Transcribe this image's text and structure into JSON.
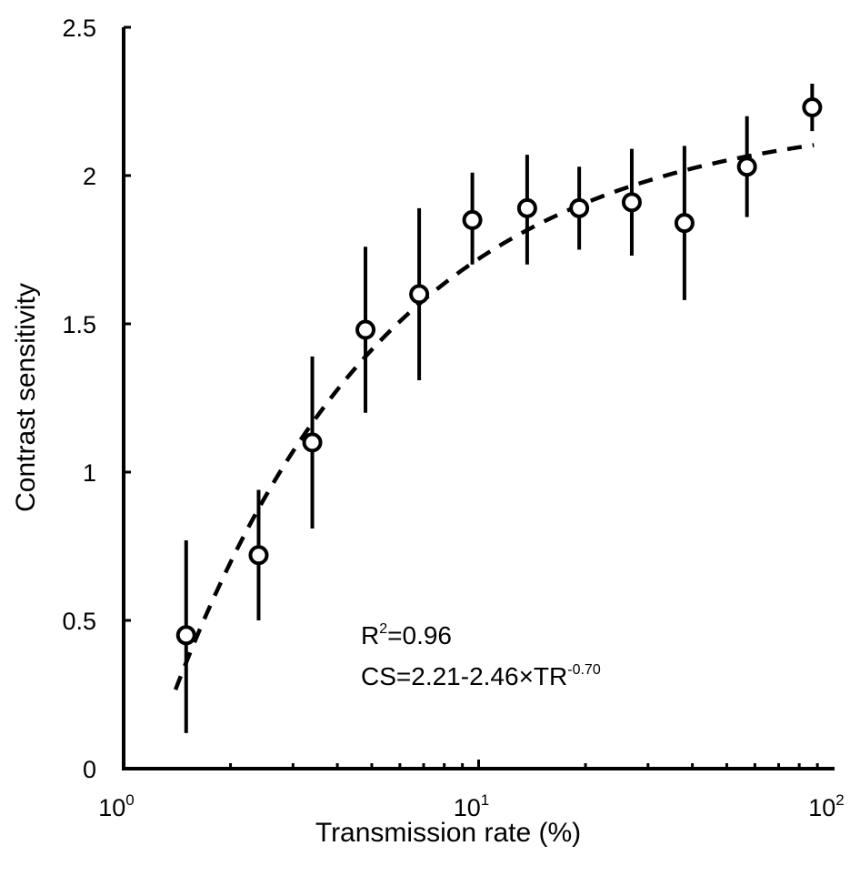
{
  "chart_data": {
    "type": "scatter",
    "title": "",
    "xlabel": "Transmission rate (%)",
    "ylabel": "Contrast sensitivity",
    "x_scale": "log",
    "xlim": [
      1,
      100
    ],
    "ylim": [
      0,
      2.5
    ],
    "x_ticks": [
      {
        "value": 1,
        "base": "10",
        "exp": "0"
      },
      {
        "value": 10,
        "base": "10",
        "exp": "1"
      },
      {
        "value": 100,
        "base": "10",
        "exp": "2"
      }
    ],
    "y_ticks": [
      {
        "value": 0,
        "label": "0"
      },
      {
        "value": 0.5,
        "label": "0.5"
      },
      {
        "value": 1,
        "label": "1"
      },
      {
        "value": 1.5,
        "label": "1.5"
      },
      {
        "value": 2,
        "label": "2"
      },
      {
        "value": 2.5,
        "label": "2.5"
      }
    ],
    "grid": false,
    "points": [
      {
        "x": 1.5,
        "y": 0.45,
        "err_low": 0.12,
        "err_high": 0.77
      },
      {
        "x": 2.4,
        "y": 0.72,
        "err_low": 0.5,
        "err_high": 0.94
      },
      {
        "x": 3.4,
        "y": 1.1,
        "err_low": 0.81,
        "err_high": 1.39
      },
      {
        "x": 4.8,
        "y": 1.48,
        "err_low": 1.2,
        "err_high": 1.76
      },
      {
        "x": 6.8,
        "y": 1.6,
        "err_low": 1.31,
        "err_high": 1.89
      },
      {
        "x": 9.6,
        "y": 1.85,
        "err_low": 1.7,
        "err_high": 2.01
      },
      {
        "x": 13.7,
        "y": 1.89,
        "err_low": 1.7,
        "err_high": 2.07
      },
      {
        "x": 19.2,
        "y": 1.89,
        "err_low": 1.75,
        "err_high": 2.03
      },
      {
        "x": 27,
        "y": 1.91,
        "err_low": 1.73,
        "err_high": 2.09
      },
      {
        "x": 38,
        "y": 1.84,
        "err_low": 1.58,
        "err_high": 2.1
      },
      {
        "x": 57,
        "y": 2.03,
        "err_low": 1.86,
        "err_high": 2.2
      },
      {
        "x": 87,
        "y": 2.23,
        "err_low": 2.15,
        "err_high": 2.31
      }
    ],
    "fit": {
      "a": 2.21,
      "b": 2.46,
      "c": 0.7,
      "x_from": 1.4,
      "x_to": 88,
      "style": "dashed"
    },
    "annotations": {
      "r2_prefix": "R",
      "r2_sup": "2",
      "r2_suffix": "=0.96",
      "eq_prefix": "CS=2.21-2.46×TR",
      "eq_sup": "-0.70"
    }
  }
}
